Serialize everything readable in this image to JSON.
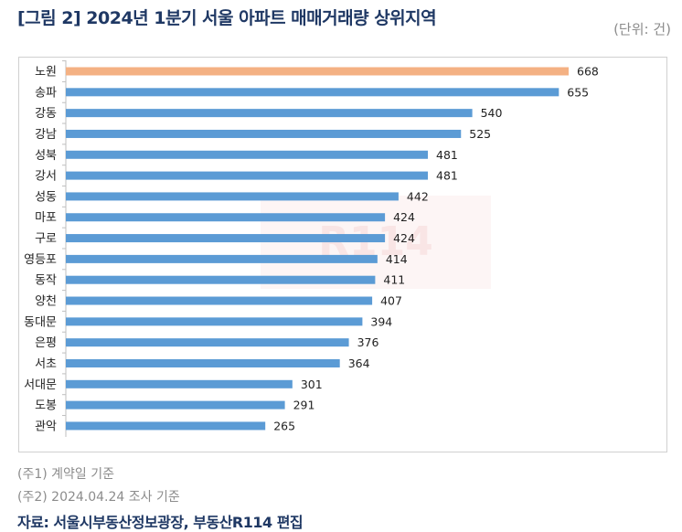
{
  "header": {
    "title": "[그림 2] 2024년 1분기 서울 아파트 매매거래량 상위지역",
    "unit": "(단위: 건)"
  },
  "watermark": "부동산R114",
  "notes": [
    "(주1) 계약일 기준",
    "(주2) 2024.04.24 조사 기준"
  ],
  "source": "자료: 서울시부동산정보광장, 부동산R114 편집",
  "colors": {
    "highlight": "#f4b183",
    "bar": "#5b9bd5"
  },
  "chart_data": {
    "type": "bar",
    "orientation": "horizontal",
    "title": "[그림 2] 2024년 1분기 서울 아파트 매매거래량 상위지역",
    "xlabel": "",
    "ylabel": "",
    "unit": "건",
    "xlim": [
      0,
      668
    ],
    "grid": false,
    "categories": [
      "노원",
      "송파",
      "강동",
      "강남",
      "성북",
      "강서",
      "성동",
      "마포",
      "구로",
      "영등포",
      "동작",
      "양천",
      "동대문",
      "은평",
      "서초",
      "서대문",
      "도봉",
      "관악"
    ],
    "values": [
      668,
      655,
      540,
      525,
      481,
      481,
      442,
      424,
      424,
      414,
      411,
      407,
      394,
      376,
      364,
      301,
      291,
      265
    ],
    "highlight_index": 0
  }
}
